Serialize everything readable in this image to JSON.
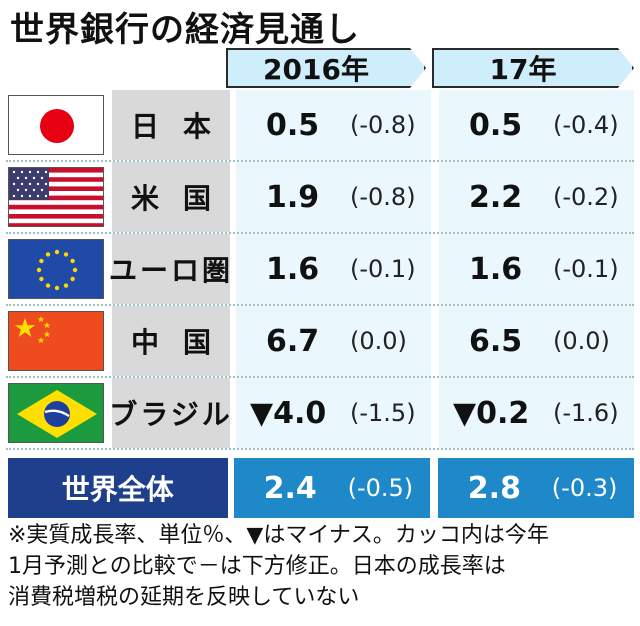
{
  "title": "世界銀行の経済見通し",
  "years": [
    "2016年",
    "17年"
  ],
  "rows": [
    {
      "country": "日本",
      "flag": "japan-flag",
      "v2016": "0.5",
      "d2016": "(-0.8)",
      "v2017": "0.5",
      "d2017": "(-0.4)"
    },
    {
      "country": "米国",
      "flag": "usa-flag",
      "v2016": "1.9",
      "d2016": "(-0.8)",
      "v2017": "2.2",
      "d2017": "(-0.2)"
    },
    {
      "country": "ユーロ圏",
      "flag": "eu-flag",
      "v2016": "1.6",
      "d2016": "(-0.1)",
      "v2017": "1.6",
      "d2017": "(-0.1)"
    },
    {
      "country": "中国",
      "flag": "china-flag",
      "v2016": "6.7",
      "d2016": "(0.0)",
      "v2017": "6.5",
      "d2017": "(0.0)"
    },
    {
      "country": "ブラジル",
      "flag": "brazil-flag",
      "v2016": "▼4.0",
      "d2016": "(-1.5)",
      "v2017": "▼0.2",
      "d2017": "(-1.6)"
    }
  ],
  "world": {
    "label": "世界全体",
    "v2016": "2.4",
    "d2016": "(-0.5)",
    "v2017": "2.8",
    "d2017": "(-0.3)"
  },
  "note_lines": [
    "※実質成長率、単位％、▼はマイナス。カッコ内は今年",
    "1月予測との比較で－は下方修正。日本の成長率は",
    "消費税増税の延期を反映していない"
  ],
  "colors": {
    "year_tag_bg": "#cfeefb",
    "name_bg": "#d9d9d9",
    "value_bg": "#eaf7fd",
    "world_label_bg": "#1e3f8c",
    "world_value_bg": "#1e88c8"
  }
}
